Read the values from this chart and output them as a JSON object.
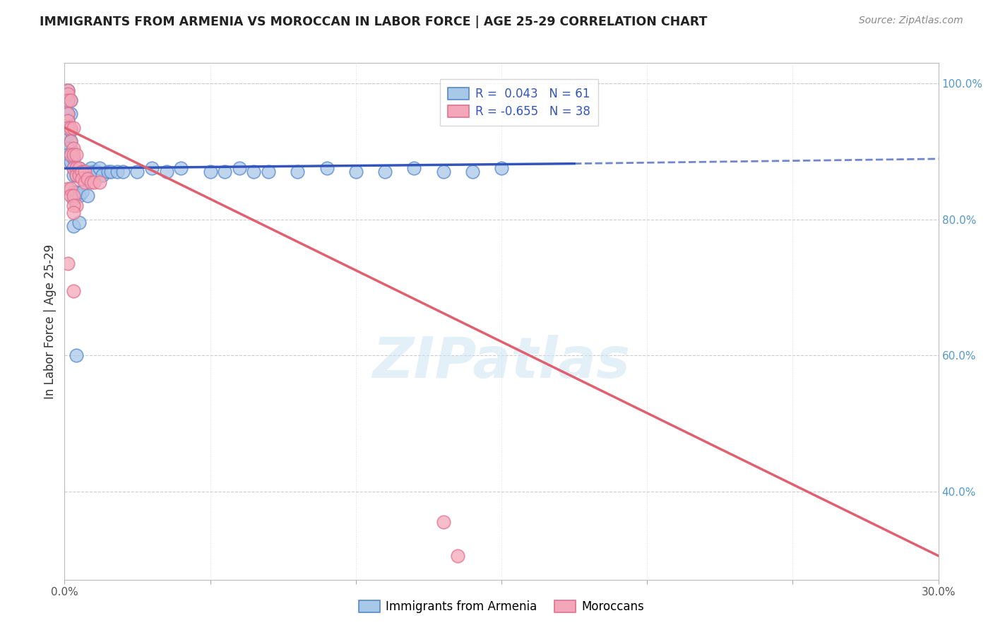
{
  "title": "IMMIGRANTS FROM ARMENIA VS MOROCCAN IN LABOR FORCE | AGE 25-29 CORRELATION CHART",
  "source": "Source: ZipAtlas.com",
  "ylabel": "In Labor Force | Age 25-29",
  "x_min": 0.0,
  "x_max": 0.3,
  "y_min": 0.27,
  "y_max": 1.03,
  "x_ticks": [
    0.0,
    0.05,
    0.1,
    0.15,
    0.2,
    0.25,
    0.3
  ],
  "x_tick_labels": [
    "0.0%",
    "",
    "",
    "",
    "",
    "",
    "30.0%"
  ],
  "y_ticks_right": [
    1.0,
    0.8,
    0.6,
    0.4
  ],
  "y_tick_labels_right": [
    "100.0%",
    "80.0%",
    "60.0%",
    "40.0%"
  ],
  "legend_label_armenia": "Immigrants from Armenia",
  "legend_label_moroccan": "Moroccans",
  "armenia_color": "#a8c8e8",
  "moroccan_color": "#f4a7b9",
  "armenia_edge_color": "#5588cc",
  "moroccan_edge_color": "#e07090",
  "armenia_line_color": "#3355bb",
  "moroccan_line_color": "#e06070",
  "watermark_text": "ZIPatlas",
  "armenia_points": [
    [
      0.001,
      0.99
    ],
    [
      0.001,
      0.975
    ],
    [
      0.002,
      0.975
    ],
    [
      0.002,
      0.955
    ],
    [
      0.001,
      0.955
    ],
    [
      0.001,
      0.945
    ],
    [
      0.001,
      0.935
    ],
    [
      0.001,
      0.925
    ],
    [
      0.002,
      0.93
    ],
    [
      0.002,
      0.915
    ],
    [
      0.002,
      0.905
    ],
    [
      0.001,
      0.905
    ],
    [
      0.001,
      0.895
    ],
    [
      0.001,
      0.885
    ],
    [
      0.002,
      0.895
    ],
    [
      0.002,
      0.885
    ],
    [
      0.003,
      0.89
    ],
    [
      0.003,
      0.875
    ],
    [
      0.003,
      0.865
    ],
    [
      0.004,
      0.875
    ],
    [
      0.004,
      0.865
    ],
    [
      0.005,
      0.875
    ],
    [
      0.005,
      0.87
    ],
    [
      0.006,
      0.87
    ],
    [
      0.007,
      0.865
    ],
    [
      0.008,
      0.87
    ],
    [
      0.009,
      0.875
    ],
    [
      0.01,
      0.87
    ],
    [
      0.011,
      0.87
    ],
    [
      0.012,
      0.875
    ],
    [
      0.013,
      0.865
    ],
    [
      0.015,
      0.87
    ],
    [
      0.016,
      0.87
    ],
    [
      0.018,
      0.87
    ],
    [
      0.02,
      0.87
    ],
    [
      0.025,
      0.87
    ],
    [
      0.03,
      0.875
    ],
    [
      0.035,
      0.87
    ],
    [
      0.04,
      0.875
    ],
    [
      0.05,
      0.87
    ],
    [
      0.055,
      0.87
    ],
    [
      0.06,
      0.875
    ],
    [
      0.065,
      0.87
    ],
    [
      0.07,
      0.87
    ],
    [
      0.08,
      0.87
    ],
    [
      0.09,
      0.875
    ],
    [
      0.1,
      0.87
    ],
    [
      0.11,
      0.87
    ],
    [
      0.12,
      0.875
    ],
    [
      0.13,
      0.87
    ],
    [
      0.14,
      0.87
    ],
    [
      0.15,
      0.875
    ],
    [
      0.003,
      0.84
    ],
    [
      0.003,
      0.83
    ],
    [
      0.004,
      0.84
    ],
    [
      0.005,
      0.835
    ],
    [
      0.006,
      0.84
    ],
    [
      0.008,
      0.835
    ],
    [
      0.003,
      0.79
    ],
    [
      0.005,
      0.795
    ],
    [
      0.004,
      0.6
    ]
  ],
  "moroccan_points": [
    [
      0.001,
      0.99
    ],
    [
      0.001,
      0.985
    ],
    [
      0.001,
      0.975
    ],
    [
      0.002,
      0.975
    ],
    [
      0.001,
      0.955
    ],
    [
      0.001,
      0.945
    ],
    [
      0.001,
      0.935
    ],
    [
      0.002,
      0.935
    ],
    [
      0.002,
      0.915
    ],
    [
      0.003,
      0.935
    ],
    [
      0.003,
      0.905
    ],
    [
      0.002,
      0.895
    ],
    [
      0.003,
      0.895
    ],
    [
      0.004,
      0.895
    ],
    [
      0.003,
      0.875
    ],
    [
      0.004,
      0.875
    ],
    [
      0.004,
      0.865
    ],
    [
      0.005,
      0.875
    ],
    [
      0.005,
      0.865
    ],
    [
      0.006,
      0.87
    ],
    [
      0.006,
      0.86
    ],
    [
      0.007,
      0.87
    ],
    [
      0.007,
      0.855
    ],
    [
      0.008,
      0.86
    ],
    [
      0.009,
      0.855
    ],
    [
      0.01,
      0.855
    ],
    [
      0.012,
      0.855
    ],
    [
      0.001,
      0.845
    ],
    [
      0.002,
      0.845
    ],
    [
      0.002,
      0.835
    ],
    [
      0.003,
      0.835
    ],
    [
      0.004,
      0.82
    ],
    [
      0.003,
      0.82
    ],
    [
      0.003,
      0.81
    ],
    [
      0.001,
      0.735
    ],
    [
      0.003,
      0.695
    ],
    [
      0.13,
      0.355
    ],
    [
      0.135,
      0.305
    ]
  ],
  "armenia_line": {
    "x0": 0.0,
    "y0": 0.875,
    "x1": 0.175,
    "y1": 0.882
  },
  "armenia_line_dashed_x1": 0.3,
  "armenian_line_dashed_y1": 0.889,
  "moroccan_line": {
    "x0": 0.0,
    "y0": 0.935,
    "x1": 0.3,
    "y1": 0.305
  }
}
